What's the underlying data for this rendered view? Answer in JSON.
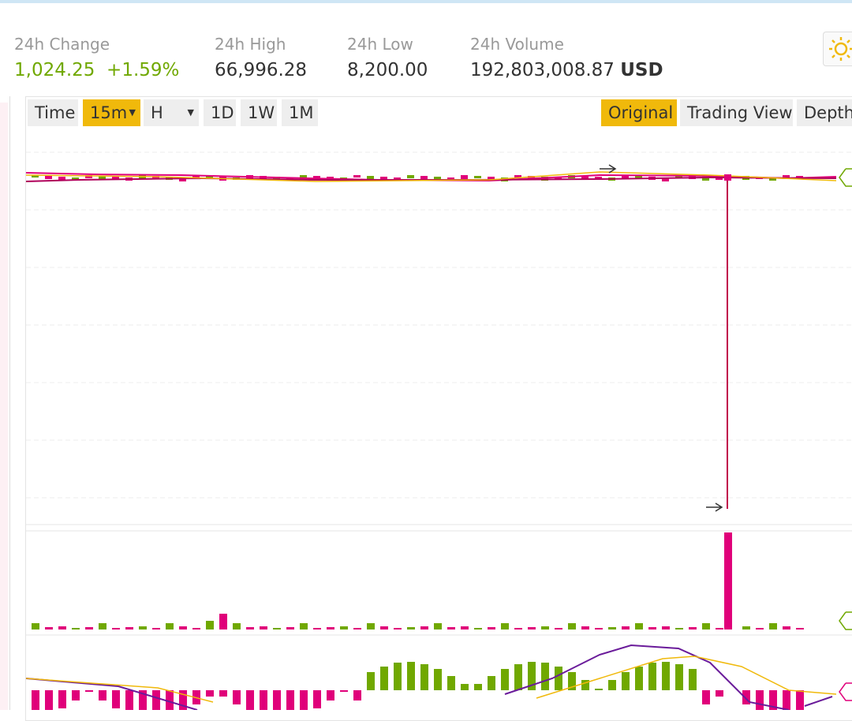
{
  "left_fragment": ")",
  "stats": [
    {
      "label": "24h Change",
      "value": "1,024.25",
      "change": "+1.59%"
    },
    {
      "label": "24h High",
      "value": "66,996.28"
    },
    {
      "label": "24h Low",
      "value": "8,200.00"
    },
    {
      "label": "24h Volume",
      "value": "192,803,008.87",
      "unit": "USD"
    }
  ],
  "toolbar": {
    "intervals": [
      "Time",
      "15m",
      "H",
      "1D",
      "1W",
      "1M"
    ],
    "views": [
      "Original",
      "Trading View",
      "Depth"
    ]
  }
}
